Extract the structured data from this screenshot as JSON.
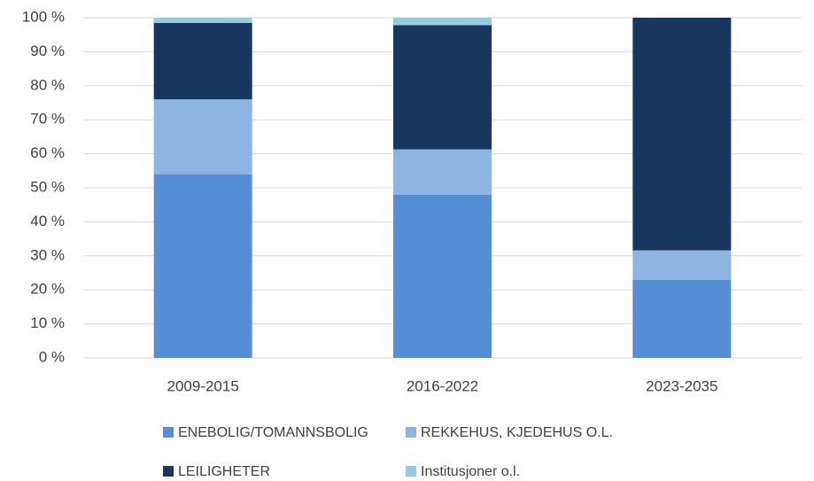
{
  "chart_data": {
    "type": "stacked_bar",
    "categories": [
      "2009-2015",
      "2016-2022",
      "2023-2035"
    ],
    "series": [
      {
        "name": "ENEBOLIG/TOMANNSBOLIG",
        "color": "#558ed5",
        "values": [
          54,
          48,
          23
        ]
      },
      {
        "name": "REKKEHUS, KJEDEHUS O.L.",
        "color": "#8eb4e3",
        "values": [
          22,
          13.3,
          8.6
        ]
      },
      {
        "name": "LEILIGHETER",
        "color": "#17375e",
        "values": [
          22.5,
          36.5,
          68.4
        ]
      },
      {
        "name": "Institusjoner o.l.",
        "color": "#93cddd",
        "values": [
          1.5,
          2.2,
          0
        ]
      }
    ],
    "ylim": [
      0,
      100
    ],
    "yticks": [
      {
        "value": 0,
        "label": "0 %"
      },
      {
        "value": 10,
        "label": "10 %"
      },
      {
        "value": 20,
        "label": "20 %"
      },
      {
        "value": 30,
        "label": "30 %"
      },
      {
        "value": 40,
        "label": "40 %"
      },
      {
        "value": 50,
        "label": "50 %"
      },
      {
        "value": 60,
        "label": "60 %"
      },
      {
        "value": 70,
        "label": "70 %"
      },
      {
        "value": 80,
        "label": "80 %"
      },
      {
        "value": 90,
        "label": "90 %"
      },
      {
        "value": 100,
        "label": "100 %"
      }
    ],
    "grid": true
  }
}
